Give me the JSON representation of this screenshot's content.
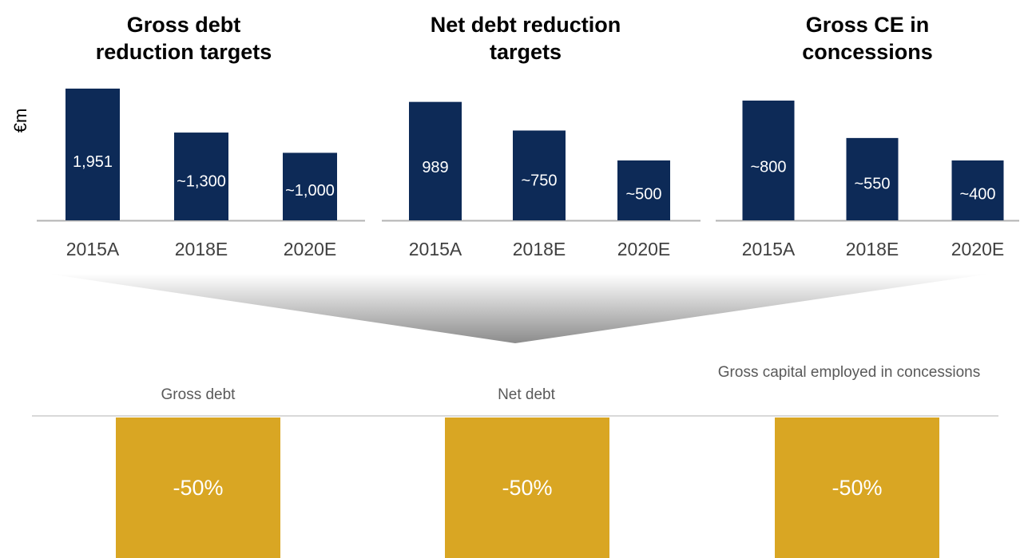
{
  "y_axis_unit": "€m",
  "chart_data": [
    {
      "type": "bar",
      "title": "Gross debt\nreduction targets",
      "categories": [
        "2015A",
        "2018E",
        "2020E"
      ],
      "values": [
        1951,
        1300,
        1000
      ],
      "value_labels": [
        "1,951",
        "~1,300",
        "~1,000"
      ],
      "ylim": [
        0,
        1951
      ],
      "bar_color": "#0d2a57",
      "ylabel": "€m"
    },
    {
      "type": "bar",
      "title": "Net debt reduction\ntargets",
      "categories": [
        "2015A",
        "2018E",
        "2020E"
      ],
      "values": [
        989,
        750,
        500
      ],
      "value_labels": [
        "989",
        "~750",
        "~500"
      ],
      "ylim": [
        0,
        1100
      ],
      "bar_color": "#0d2a57"
    },
    {
      "type": "bar",
      "title": "Gross CE in\nconcessions",
      "categories": [
        "2015A",
        "2018E",
        "2020E"
      ],
      "values": [
        800,
        550,
        400
      ],
      "value_labels": [
        "~800",
        "~550",
        "~400"
      ],
      "ylim": [
        0,
        880
      ],
      "bar_color": "#0d2a57"
    }
  ],
  "targets": [
    {
      "label": "Gross debt",
      "value": "-50%"
    },
    {
      "label": "Net debt",
      "value": "-50%"
    },
    {
      "label": "Gross capital employed in concessions",
      "value": "-50%"
    }
  ],
  "colors": {
    "bar": "#0d2a57",
    "target_box": "#d9a623",
    "axis": "#b3b3b3",
    "category_text": "#404040"
  }
}
